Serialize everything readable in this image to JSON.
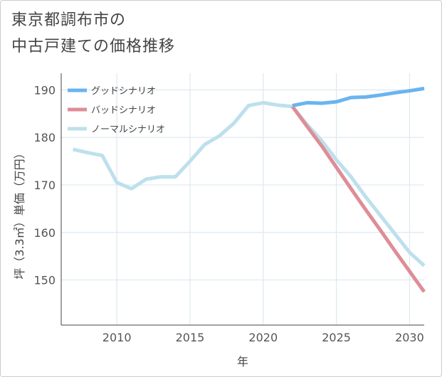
{
  "chart_data": {
    "type": "line",
    "title_lines": [
      "東京都調布市の",
      "中古戸建ての価格推移"
    ],
    "xlabel": "年",
    "ylabel": "坪（3.3㎡）単価（万円）",
    "xlim": [
      2006.2,
      2031
    ],
    "ylim": [
      140.5,
      193.5
    ],
    "xticks": [
      2010,
      2015,
      2020,
      2025,
      2030
    ],
    "yticks": [
      150,
      160,
      170,
      180,
      190
    ],
    "grid": true,
    "legend_position": "top-left",
    "series": [
      {
        "name": "ノーマルシナリオ",
        "color": "#bde0ec",
        "x": [
          2007,
          2008,
          2009,
          2010,
          2011,
          2012,
          2013,
          2014,
          2015,
          2016,
          2017,
          2018,
          2019,
          2020,
          2021,
          2022,
          2023,
          2024,
          2025,
          2026,
          2027,
          2028,
          2029,
          2030,
          2031
        ],
        "values": [
          177.5,
          176.8,
          176.2,
          170.5,
          169.2,
          171.2,
          171.7,
          171.7,
          175.0,
          178.5,
          180.3,
          183.0,
          186.7,
          187.3,
          186.8,
          186.5,
          182.7,
          179.3,
          175.3,
          171.7,
          167.5,
          163.6,
          159.7,
          155.8,
          153.0
        ]
      },
      {
        "name": "バッドシナリオ",
        "color": "#de8d96",
        "x": [
          2022,
          2023,
          2024,
          2025,
          2026,
          2027,
          2028,
          2029,
          2030,
          2031
        ],
        "values": [
          186.5,
          182.3,
          178.2,
          173.7,
          169.2,
          164.8,
          160.5,
          156.1,
          151.8,
          147.5
        ]
      },
      {
        "name": "グッドシナリオ",
        "color": "#6ab4ef",
        "x": [
          2022,
          2023,
          2024,
          2025,
          2026,
          2027,
          2028,
          2029,
          2030,
          2031
        ],
        "values": [
          186.7,
          187.3,
          187.2,
          187.5,
          188.4,
          188.5,
          188.9,
          189.4,
          189.8,
          190.3
        ]
      }
    ],
    "legend": [
      {
        "name": "グッドシナリオ",
        "color": "#6ab4ef"
      },
      {
        "name": "バッドシナリオ",
        "color": "#de8d96"
      },
      {
        "name": "ノーマルシナリオ",
        "color": "#bde0ec"
      }
    ]
  }
}
